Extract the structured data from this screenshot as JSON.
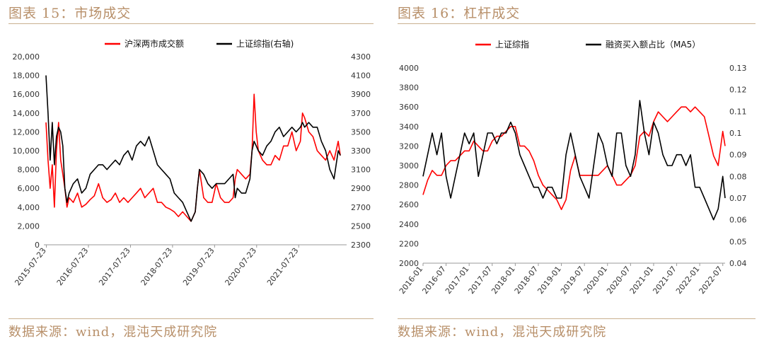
{
  "chart_data": [
    {
      "type": "line",
      "heading": "图表 15：市场成交",
      "source": "数据来源：wind，混沌天成研究院",
      "x_labels": [
        "2015-07-23",
        "2016-07-23",
        "2017-07-23",
        "2018-07-23",
        "2019-07-23",
        "2020-07-23",
        "2021-07-23"
      ],
      "y_left": {
        "min": 0,
        "max": 20000,
        "ticks": [
          "0",
          "2,000",
          "4,000",
          "6,000",
          "8,000",
          "10,000",
          "12,000",
          "14,000",
          "16,000",
          "18,000",
          "20,000"
        ]
      },
      "y_right": {
        "min": 2300,
        "max": 4300,
        "ticks": [
          "2300",
          "2500",
          "2700",
          "2900",
          "3100",
          "3300",
          "3500",
          "3700",
          "3900",
          "4100",
          "4300"
        ]
      },
      "series": [
        {
          "name": "沪深两市成交额",
          "axis": "left",
          "color": "#ff0000",
          "x": [
            2015.55,
            2015.6,
            2015.65,
            2015.7,
            2015.75,
            2015.8,
            2015.85,
            2015.9,
            2015.95,
            2016.0,
            2016.05,
            2016.1,
            2016.2,
            2016.3,
            2016.4,
            2016.5,
            2016.6,
            2016.7,
            2016.8,
            2016.9,
            2017.0,
            2017.1,
            2017.2,
            2017.3,
            2017.4,
            2017.5,
            2017.6,
            2017.7,
            2017.8,
            2017.9,
            2018.0,
            2018.1,
            2018.2,
            2018.3,
            2018.4,
            2018.5,
            2018.6,
            2018.7,
            2018.8,
            2018.9,
            2019.0,
            2019.1,
            2019.15,
            2019.2,
            2019.3,
            2019.4,
            2019.5,
            2019.6,
            2019.7,
            2019.8,
            2019.9,
            2020.0,
            2020.05,
            2020.1,
            2020.2,
            2020.3,
            2020.4,
            2020.45,
            2020.5,
            2020.55,
            2020.6,
            2020.7,
            2020.8,
            2020.9,
            2021.0,
            2021.1,
            2021.2,
            2021.3,
            2021.4,
            2021.5,
            2021.6,
            2021.65,
            2021.7,
            2021.8,
            2021.9,
            2022.0,
            2022.1,
            2022.2,
            2022.3,
            2022.4,
            2022.5,
            2022.55
          ],
          "y": [
            13000,
            9000,
            6000,
            8500,
            4000,
            10000,
            13000,
            9000,
            7500,
            6000,
            4000,
            5000,
            4500,
            5500,
            4000,
            4300,
            4800,
            5200,
            6500,
            5000,
            4500,
            4800,
            5500,
            4500,
            5000,
            4500,
            5000,
            5500,
            6000,
            5000,
            5500,
            6000,
            4500,
            4500,
            4000,
            3800,
            3500,
            3000,
            3500,
            3000,
            2500,
            3500,
            6000,
            8000,
            5000,
            4500,
            4500,
            6500,
            5000,
            4500,
            4500,
            5000,
            7000,
            8000,
            7500,
            7000,
            7500,
            10000,
            16000,
            12000,
            10000,
            9000,
            8500,
            8500,
            9500,
            9000,
            10500,
            10500,
            12000,
            10000,
            11000,
            14000,
            13500,
            12000,
            11500,
            10000,
            9500,
            9000,
            10000,
            9000,
            11000,
            9500
          ]
        },
        {
          "name": "上证综指(右轴)",
          "axis": "right",
          "color": "#000000",
          "x": [
            2015.55,
            2015.6,
            2015.65,
            2015.7,
            2015.75,
            2015.8,
            2015.85,
            2015.9,
            2015.95,
            2016.0,
            2016.05,
            2016.1,
            2016.2,
            2016.3,
            2016.4,
            2016.5,
            2016.6,
            2016.7,
            2016.8,
            2016.9,
            2017.0,
            2017.1,
            2017.2,
            2017.3,
            2017.4,
            2017.5,
            2017.6,
            2017.7,
            2017.8,
            2017.9,
            2018.0,
            2018.1,
            2018.2,
            2018.3,
            2018.4,
            2018.5,
            2018.6,
            2018.7,
            2018.8,
            2018.9,
            2019.0,
            2019.1,
            2019.15,
            2019.2,
            2019.3,
            2019.4,
            2019.5,
            2019.6,
            2019.7,
            2019.8,
            2019.9,
            2020.0,
            2020.05,
            2020.1,
            2020.2,
            2020.3,
            2020.4,
            2020.45,
            2020.5,
            2020.55,
            2020.6,
            2020.7,
            2020.8,
            2020.9,
            2021.0,
            2021.1,
            2021.2,
            2021.3,
            2021.4,
            2021.5,
            2021.6,
            2021.65,
            2021.7,
            2021.8,
            2021.9,
            2022.0,
            2022.1,
            2022.2,
            2022.3,
            2022.4,
            2022.5,
            2022.55
          ],
          "y": [
            4100,
            3700,
            3200,
            3600,
            3150,
            3450,
            3550,
            3500,
            3350,
            2900,
            2750,
            2850,
            2950,
            3000,
            2850,
            2900,
            3050,
            3100,
            3150,
            3150,
            3100,
            3150,
            3200,
            3150,
            3250,
            3300,
            3200,
            3350,
            3400,
            3350,
            3450,
            3300,
            3150,
            3100,
            3050,
            3000,
            2850,
            2800,
            2750,
            2650,
            2550,
            2650,
            2900,
            3100,
            3050,
            2950,
            2900,
            2950,
            2950,
            2950,
            3000,
            3050,
            2800,
            2900,
            2850,
            2850,
            3000,
            3300,
            3400,
            3350,
            3300,
            3250,
            3350,
            3400,
            3500,
            3550,
            3450,
            3500,
            3550,
            3500,
            3550,
            3600,
            3550,
            3600,
            3550,
            3550,
            3400,
            3300,
            3100,
            3000,
            3300,
            3250
          ]
        }
      ]
    },
    {
      "type": "line",
      "heading": "图表 16：杠杆成交",
      "source": "数据来源：wind，混沌天成研究院",
      "x_labels": [
        "2016-01",
        "2016-07",
        "2017-01",
        "2017-07",
        "2018-01",
        "2018-07",
        "2019-01",
        "2019-07",
        "2020-01",
        "2020-07",
        "2021-01",
        "2021-07",
        "2022-01",
        "2022-07"
      ],
      "y_left": {
        "min": 2000,
        "max": 4000,
        "ticks": [
          "2000",
          "2200",
          "2400",
          "2600",
          "2800",
          "3000",
          "3200",
          "3400",
          "3600",
          "3800",
          "4000"
        ]
      },
      "y_right": {
        "min": 0.04,
        "max": 0.13,
        "ticks": [
          "0.04",
          "0.05",
          "0.06",
          "0.07",
          "0.08",
          "0.09",
          "0.1",
          "0.11",
          "0.12",
          "0.13"
        ]
      },
      "series": [
        {
          "name": "上证综指",
          "axis": "left",
          "color": "#ff0000",
          "x": [
            2016.0,
            2016.1,
            2016.2,
            2016.3,
            2016.4,
            2016.5,
            2016.6,
            2016.7,
            2016.8,
            2016.9,
            2017.0,
            2017.1,
            2017.2,
            2017.3,
            2017.4,
            2017.5,
            2017.6,
            2017.7,
            2017.8,
            2017.9,
            2018.0,
            2018.1,
            2018.2,
            2018.3,
            2018.4,
            2018.5,
            2018.6,
            2018.7,
            2018.8,
            2018.9,
            2019.0,
            2019.1,
            2019.2,
            2019.3,
            2019.4,
            2019.5,
            2019.6,
            2019.7,
            2019.8,
            2019.9,
            2020.0,
            2020.1,
            2020.2,
            2020.3,
            2020.4,
            2020.5,
            2020.6,
            2020.7,
            2020.8,
            2020.9,
            2021.0,
            2021.1,
            2021.2,
            2021.3,
            2021.4,
            2021.5,
            2021.6,
            2021.7,
            2021.8,
            2021.9,
            2022.0,
            2022.1,
            2022.2,
            2022.3,
            2022.4,
            2022.5,
            2022.55
          ],
          "y": [
            2700,
            2850,
            2950,
            2900,
            2900,
            3000,
            3050,
            3050,
            3100,
            3150,
            3150,
            3250,
            3200,
            3150,
            3150,
            3250,
            3300,
            3300,
            3350,
            3400,
            3400,
            3200,
            3200,
            3150,
            3050,
            2900,
            2800,
            2750,
            2700,
            2650,
            2550,
            2650,
            2950,
            3100,
            2900,
            2900,
            2900,
            2900,
            2900,
            2950,
            3000,
            2900,
            2800,
            2800,
            2850,
            2900,
            3000,
            3300,
            3350,
            3300,
            3450,
            3550,
            3500,
            3450,
            3500,
            3550,
            3600,
            3600,
            3550,
            3600,
            3550,
            3500,
            3300,
            3100,
            3000,
            3350,
            3200
          ]
        },
        {
          "name": "融资买入额占比（MA5）",
          "axis": "right",
          "color": "#000000",
          "x": [
            2016.0,
            2016.1,
            2016.2,
            2016.3,
            2016.4,
            2016.5,
            2016.6,
            2016.7,
            2016.8,
            2016.9,
            2017.0,
            2017.1,
            2017.2,
            2017.3,
            2017.4,
            2017.5,
            2017.6,
            2017.7,
            2017.8,
            2017.9,
            2018.0,
            2018.1,
            2018.2,
            2018.3,
            2018.4,
            2018.5,
            2018.6,
            2018.7,
            2018.8,
            2018.9,
            2019.0,
            2019.1,
            2019.2,
            2019.3,
            2019.4,
            2019.5,
            2019.6,
            2019.7,
            2019.8,
            2019.9,
            2020.0,
            2020.1,
            2020.2,
            2020.3,
            2020.4,
            2020.5,
            2020.6,
            2020.7,
            2020.8,
            2020.9,
            2021.0,
            2021.1,
            2021.2,
            2021.3,
            2021.4,
            2021.5,
            2021.6,
            2021.7,
            2021.8,
            2021.9,
            2022.0,
            2022.1,
            2022.2,
            2022.3,
            2022.4,
            2022.5,
            2022.55
          ],
          "y": [
            0.08,
            0.09,
            0.1,
            0.09,
            0.1,
            0.08,
            0.07,
            0.08,
            0.09,
            0.1,
            0.095,
            0.1,
            0.08,
            0.09,
            0.1,
            0.1,
            0.095,
            0.1,
            0.1,
            0.105,
            0.1,
            0.09,
            0.085,
            0.08,
            0.075,
            0.075,
            0.07,
            0.075,
            0.075,
            0.07,
            0.07,
            0.09,
            0.1,
            0.09,
            0.08,
            0.075,
            0.07,
            0.085,
            0.1,
            0.095,
            0.085,
            0.08,
            0.1,
            0.1,
            0.085,
            0.08,
            0.09,
            0.115,
            0.1,
            0.09,
            0.105,
            0.1,
            0.09,
            0.085,
            0.085,
            0.09,
            0.09,
            0.085,
            0.09,
            0.075,
            0.075,
            0.07,
            0.065,
            0.06,
            0.065,
            0.08,
            0.07
          ]
        }
      ]
    }
  ]
}
